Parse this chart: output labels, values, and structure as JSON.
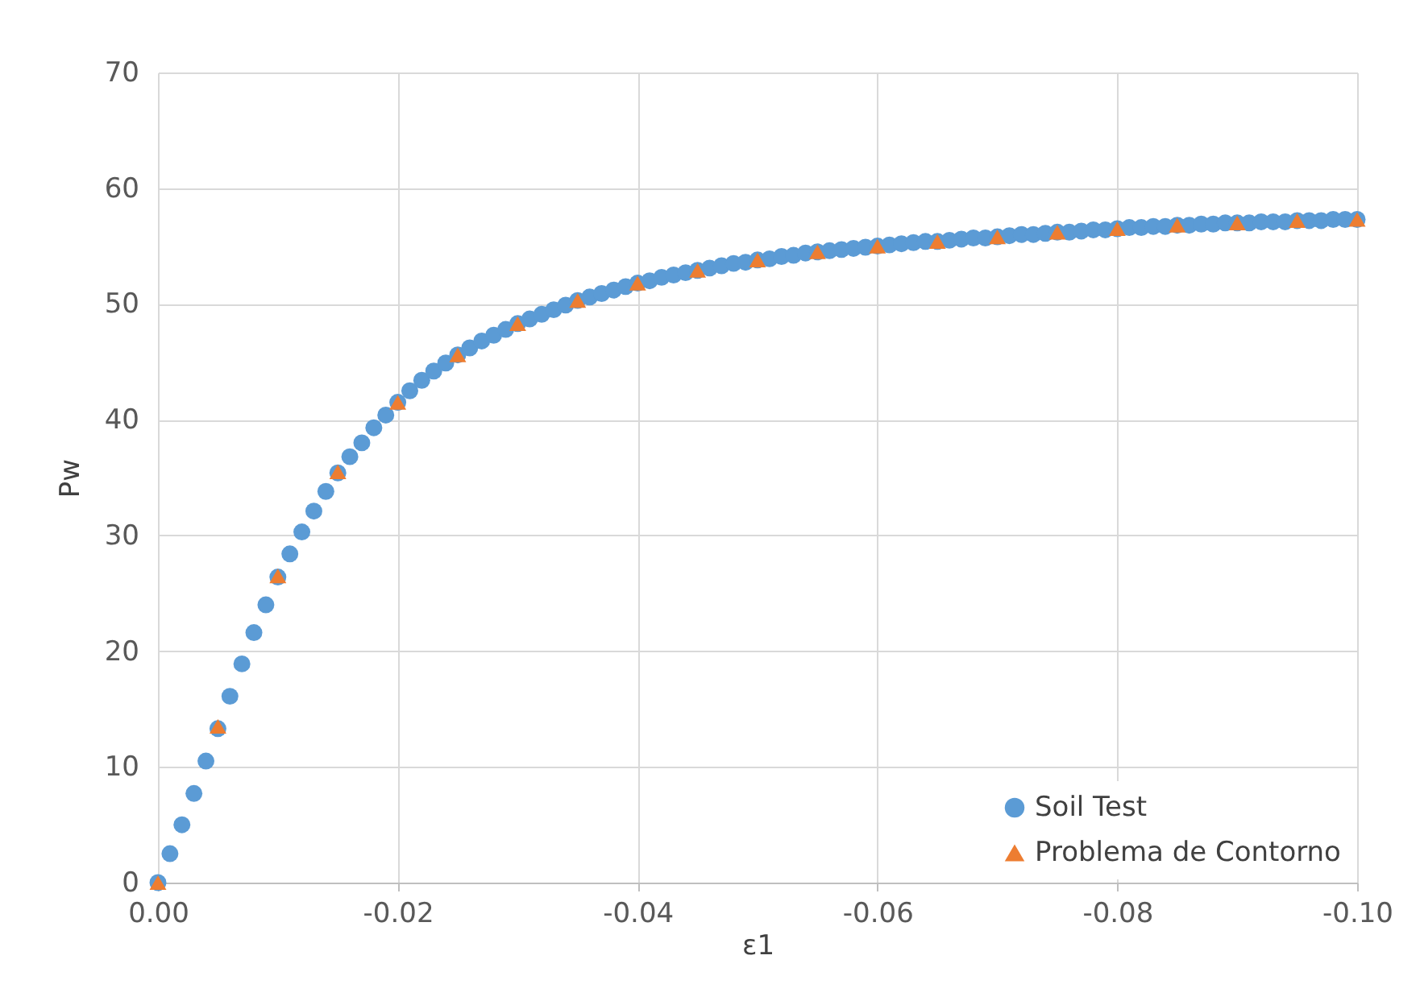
{
  "chart_data": {
    "type": "scatter",
    "xlabel": "ε1",
    "ylabel": "Pw",
    "xlim": [
      0,
      -0.1
    ],
    "xticks": [
      {
        "value": 0,
        "label": "0.00"
      },
      -0.02,
      -0.04,
      -0.06,
      -0.08,
      {
        "value": -0.1,
        "label": "-0.10"
      }
    ],
    "ylim": [
      0,
      70
    ],
    "yticks": [
      0,
      10,
      20,
      30,
      40,
      50,
      60,
      70
    ],
    "grid": true,
    "legend": "bottom right",
    "series": [
      {
        "name": "Soil Test",
        "color": "#5b9bd5",
        "marker": "circle",
        "x": [
          0,
          -0.001,
          -0.002,
          -0.003,
          -0.004,
          -0.005,
          -0.006,
          -0.007,
          -0.008,
          -0.009,
          -0.01,
          -0.011,
          -0.012,
          -0.013,
          -0.014,
          -0.015,
          -0.016,
          -0.017,
          -0.018,
          -0.019,
          -0.02,
          -0.021,
          -0.022,
          -0.023,
          -0.024,
          -0.025,
          -0.026,
          -0.027,
          -0.028,
          -0.029,
          -0.03,
          -0.031,
          -0.032,
          -0.033,
          -0.034,
          -0.035,
          -0.036,
          -0.037,
          -0.038,
          -0.039,
          -0.04,
          -0.041,
          -0.042,
          -0.043,
          -0.044,
          -0.045,
          -0.046,
          -0.047,
          -0.048,
          -0.049,
          -0.05,
          -0.051,
          -0.052,
          -0.053,
          -0.054,
          -0.055,
          -0.056,
          -0.057,
          -0.058,
          -0.059,
          -0.06,
          -0.061,
          -0.062,
          -0.063,
          -0.064,
          -0.065,
          -0.066,
          -0.067,
          -0.068,
          -0.069,
          -0.07,
          -0.071,
          -0.072,
          -0.073,
          -0.074,
          -0.075,
          -0.076,
          -0.077,
          -0.078,
          -0.079,
          -0.08,
          -0.081,
          -0.082,
          -0.083,
          -0.084,
          -0.085,
          -0.086,
          -0.087,
          -0.088,
          -0.089,
          -0.09,
          -0.091,
          -0.092,
          -0.093,
          -0.094,
          -0.095,
          -0.096,
          -0.097,
          -0.098,
          -0.099,
          -0.1
        ],
        "values": [
          0,
          2.5,
          5.0,
          7.7,
          10.5,
          13.3,
          16.1,
          18.9,
          21.6,
          24.0,
          26.4,
          28.4,
          30.3,
          32.1,
          33.8,
          35.4,
          36.8,
          38.0,
          39.3,
          40.4,
          41.5,
          42.5,
          43.4,
          44.2,
          44.9,
          45.6,
          46.2,
          46.8,
          47.3,
          47.8,
          48.3,
          48.7,
          49.1,
          49.5,
          49.9,
          50.3,
          50.6,
          50.9,
          51.2,
          51.5,
          51.8,
          52.0,
          52.3,
          52.5,
          52.7,
          52.9,
          53.1,
          53.3,
          53.5,
          53.6,
          53.8,
          53.9,
          54.1,
          54.2,
          54.4,
          54.5,
          54.6,
          54.7,
          54.8,
          54.9,
          55.0,
          55.1,
          55.2,
          55.3,
          55.4,
          55.4,
          55.5,
          55.6,
          55.7,
          55.7,
          55.8,
          55.9,
          56.0,
          56.0,
          56.1,
          56.2,
          56.2,
          56.3,
          56.4,
          56.4,
          56.5,
          56.6,
          56.6,
          56.7,
          56.7,
          56.8,
          56.8,
          56.9,
          56.9,
          57.0,
          57.0,
          57.0,
          57.1,
          57.1,
          57.1,
          57.2,
          57.2,
          57.2,
          57.3,
          57.3,
          57.3
        ]
      },
      {
        "name": "Problema de Contorno",
        "color": "#ed7d31",
        "marker": "triangle",
        "x": [
          0,
          -0.005,
          -0.01,
          -0.015,
          -0.02,
          -0.025,
          -0.03,
          -0.035,
          -0.04,
          -0.045,
          -0.05,
          -0.055,
          -0.06,
          -0.065,
          -0.07,
          -0.075,
          -0.08,
          -0.085,
          -0.09,
          -0.095,
          -0.1
        ],
        "values": [
          0,
          13.5,
          26.5,
          35.5,
          41.5,
          45.6,
          48.3,
          50.3,
          51.8,
          52.9,
          53.8,
          54.5,
          55.0,
          55.4,
          55.8,
          56.2,
          56.5,
          56.8,
          57.0,
          57.2,
          57.3
        ]
      }
    ]
  }
}
